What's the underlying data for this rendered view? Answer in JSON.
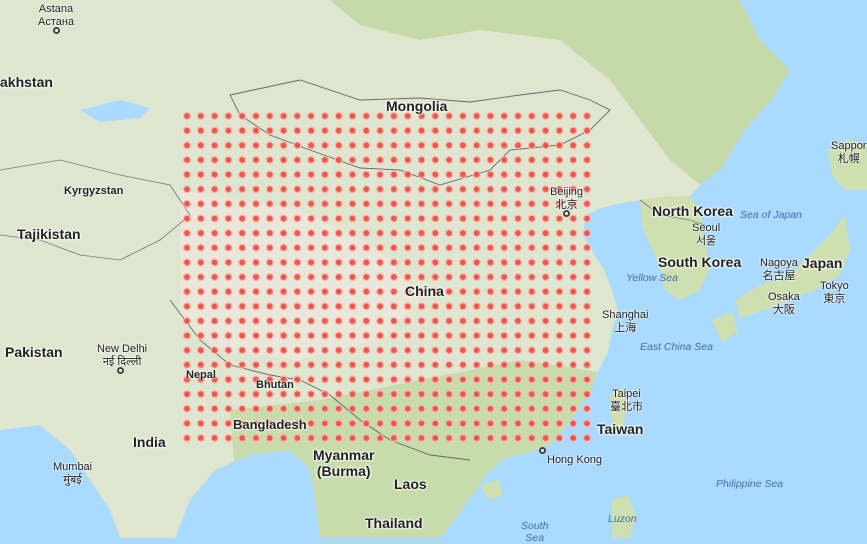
{
  "map": {
    "countries": [
      {
        "id": "mongolia",
        "label": "Mongolia"
      },
      {
        "id": "china",
        "label": "China"
      },
      {
        "id": "north-korea",
        "label": "North Korea"
      },
      {
        "id": "south-korea",
        "label": "South Korea"
      },
      {
        "id": "japan",
        "label": "Japan"
      },
      {
        "id": "india",
        "label": "India"
      },
      {
        "id": "pakistan",
        "label": "Pakistan"
      },
      {
        "id": "tajikistan",
        "label": "Tajikistan"
      },
      {
        "id": "kyrgyzstan",
        "label": "Kyrgyzstan"
      },
      {
        "id": "kazakhstan",
        "label": "akhstan"
      },
      {
        "id": "myanmar",
        "label": "Myanmar\n(Burma)"
      },
      {
        "id": "laos",
        "label": "Laos"
      },
      {
        "id": "thailand",
        "label": "Thailand"
      },
      {
        "id": "taiwan",
        "label": "Taiwan"
      },
      {
        "id": "bangladesh",
        "label": "Bangladesh"
      },
      {
        "id": "nepal",
        "label": "Nepal"
      },
      {
        "id": "bhutan",
        "label": "Bhutan"
      }
    ],
    "cities": [
      {
        "id": "astana",
        "label": "Astana\nАстана"
      },
      {
        "id": "beijing",
        "label": "Beijing\n北京"
      },
      {
        "id": "seoul",
        "label": "Seoul\n서울"
      },
      {
        "id": "nagoya",
        "label": "Nagoya\n名古屋"
      },
      {
        "id": "tokyo",
        "label": "Tokyo\n東京"
      },
      {
        "id": "osaka",
        "label": "Osaka\n大阪"
      },
      {
        "id": "sapporo",
        "label": "Sappor\n札幌"
      },
      {
        "id": "shanghai",
        "label": "Shanghai\n上海"
      },
      {
        "id": "taipei",
        "label": "Taipei\n臺北市"
      },
      {
        "id": "hong-kong",
        "label": "Hong Kong"
      },
      {
        "id": "new-delhi",
        "label": "New Delhi\nनई दिल्ली"
      },
      {
        "id": "mumbai",
        "label": "Mumbai\nमुंबई"
      },
      {
        "id": "luzon",
        "label": "Luzon"
      }
    ],
    "seas": [
      {
        "id": "sea-of-japan",
        "label": "Sea of Japan"
      },
      {
        "id": "yellow-sea",
        "label": "Yellow Sea"
      },
      {
        "id": "east-china-sea",
        "label": "East China Sea"
      },
      {
        "id": "philippine-sea",
        "label": "Philippine Sea"
      },
      {
        "id": "south-china-sea",
        "label": "South\nSea"
      }
    ],
    "marker_grid": {
      "rows": 23,
      "cols": 30,
      "color": "#ee4b42"
    }
  }
}
